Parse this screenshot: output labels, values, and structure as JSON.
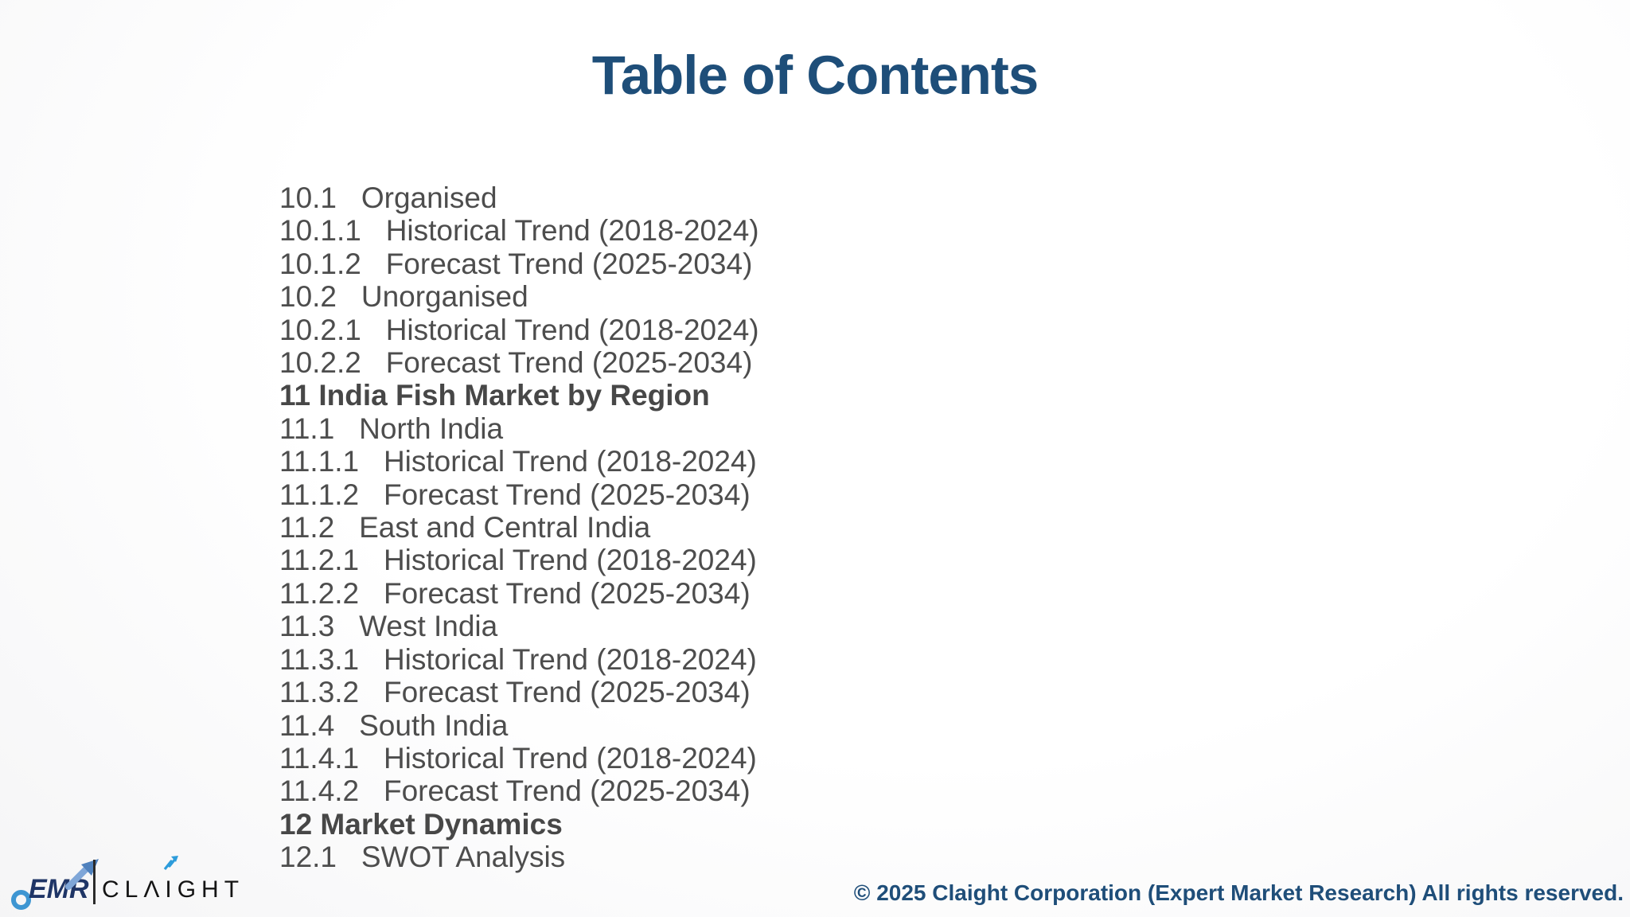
{
  "page": {
    "title": "Table of Contents"
  },
  "toc": {
    "items": [
      {
        "text": "10.1   Organised",
        "bold": false
      },
      {
        "text": "10.1.1   Historical Trend (2018-2024)",
        "bold": false
      },
      {
        "text": "10.1.2   Forecast Trend (2025-2034)",
        "bold": false
      },
      {
        "text": "10.2   Unorganised",
        "bold": false
      },
      {
        "text": "10.2.1   Historical Trend (2018-2024)",
        "bold": false
      },
      {
        "text": "10.2.2   Forecast Trend (2025-2034)",
        "bold": false
      },
      {
        "text": "11 India Fish Market by Region",
        "bold": true
      },
      {
        "text": "11.1   North India",
        "bold": false
      },
      {
        "text": "11.1.1   Historical Trend (2018-2024)",
        "bold": false
      },
      {
        "text": "11.1.2   Forecast Trend (2025-2034)",
        "bold": false
      },
      {
        "text": "11.2   East and Central India",
        "bold": false
      },
      {
        "text": "11.2.1   Historical Trend (2018-2024)",
        "bold": false
      },
      {
        "text": "11.2.2   Forecast Trend (2025-2034)",
        "bold": false
      },
      {
        "text": "11.3   West India",
        "bold": false
      },
      {
        "text": "11.3.1   Historical Trend (2018-2024)",
        "bold": false
      },
      {
        "text": "11.3.2   Forecast Trend (2025-2034)",
        "bold": false
      },
      {
        "text": "11.4   South India",
        "bold": false
      },
      {
        "text": "11.4.1   Historical Trend (2018-2024)",
        "bold": false
      },
      {
        "text": "11.4.2   Forecast Trend (2025-2034)",
        "bold": false
      },
      {
        "text": "12 Market Dynamics",
        "bold": true
      },
      {
        "text": "12.1   SWOT Analysis",
        "bold": false
      }
    ]
  },
  "footer": {
    "logo": {
      "emr": "EMR",
      "brand": "CLAIGHT",
      "brand_display": "CLΛIGHT"
    },
    "copyright": "© 2025 Claight Corporation (Expert Market Research) All rights reserved."
  },
  "colors": {
    "title_blue": "#1E4E79",
    "copyright_blue": "#1F4E79",
    "toc_gray": "#4D4D4D",
    "emr_navy": "#1F3566",
    "logo_light_blue": "#7FA6D8",
    "logo_ring_blue": "#3E96D2",
    "brand_arrow_blue": "#2D9CDB",
    "brand_black": "#141414"
  }
}
